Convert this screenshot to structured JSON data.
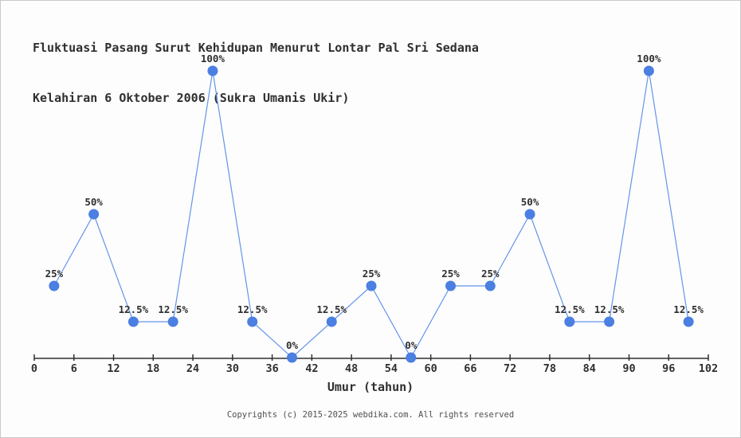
{
  "header": {
    "title_line1": "Fluktuasi Pasang Surut Kehidupan Menurut Lontar Pal Sri Sedana",
    "title_line2": "Kelahiran 6 Oktober 2006 (Sukra Umanis Ukir)"
  },
  "footer": {
    "copyright": "Copyrights (c) 2015-2025 webdika.com. All rights reserved"
  },
  "colors": {
    "background": "#fdfdfd",
    "border": "#c9c9c9",
    "text": "#2f2f2f",
    "muted": "#4f4f4f",
    "axis": "#2f2f2f",
    "line": "#6494ec",
    "marker": "#4b7fe1"
  },
  "chart_data": {
    "type": "line",
    "title": "Fluktuasi Pasang Surut Kehidupan Menurut Lontar Pal Sri Sedana Kelahiran 6 Oktober 2006 (Sukra Umanis Ukir)",
    "xlabel": "Umur (tahun)",
    "ylabel": "",
    "x": [
      3,
      9,
      15,
      21,
      27,
      33,
      39,
      45,
      51,
      57,
      63,
      69,
      75,
      81,
      87,
      93,
      99
    ],
    "values": [
      25,
      50,
      12.5,
      12.5,
      100,
      12.5,
      0,
      12.5,
      25,
      0,
      25,
      25,
      50,
      12.5,
      12.5,
      100,
      12.5
    ],
    "point_labels": [
      "25%",
      "50%",
      "12.5%",
      "12.5%",
      "100%",
      "12.5%",
      "0%",
      "12.5%",
      "25%",
      "0%",
      "25%",
      "25%",
      "50%",
      "12.5%",
      "12.5%",
      "100%",
      "12.5%"
    ],
    "x_ticks": [
      0,
      6,
      12,
      18,
      24,
      30,
      36,
      42,
      48,
      54,
      60,
      66,
      72,
      78,
      84,
      90,
      96,
      102
    ],
    "xlim": [
      0,
      102
    ],
    "ylim": [
      0,
      100
    ],
    "grid": false,
    "legend": null
  }
}
